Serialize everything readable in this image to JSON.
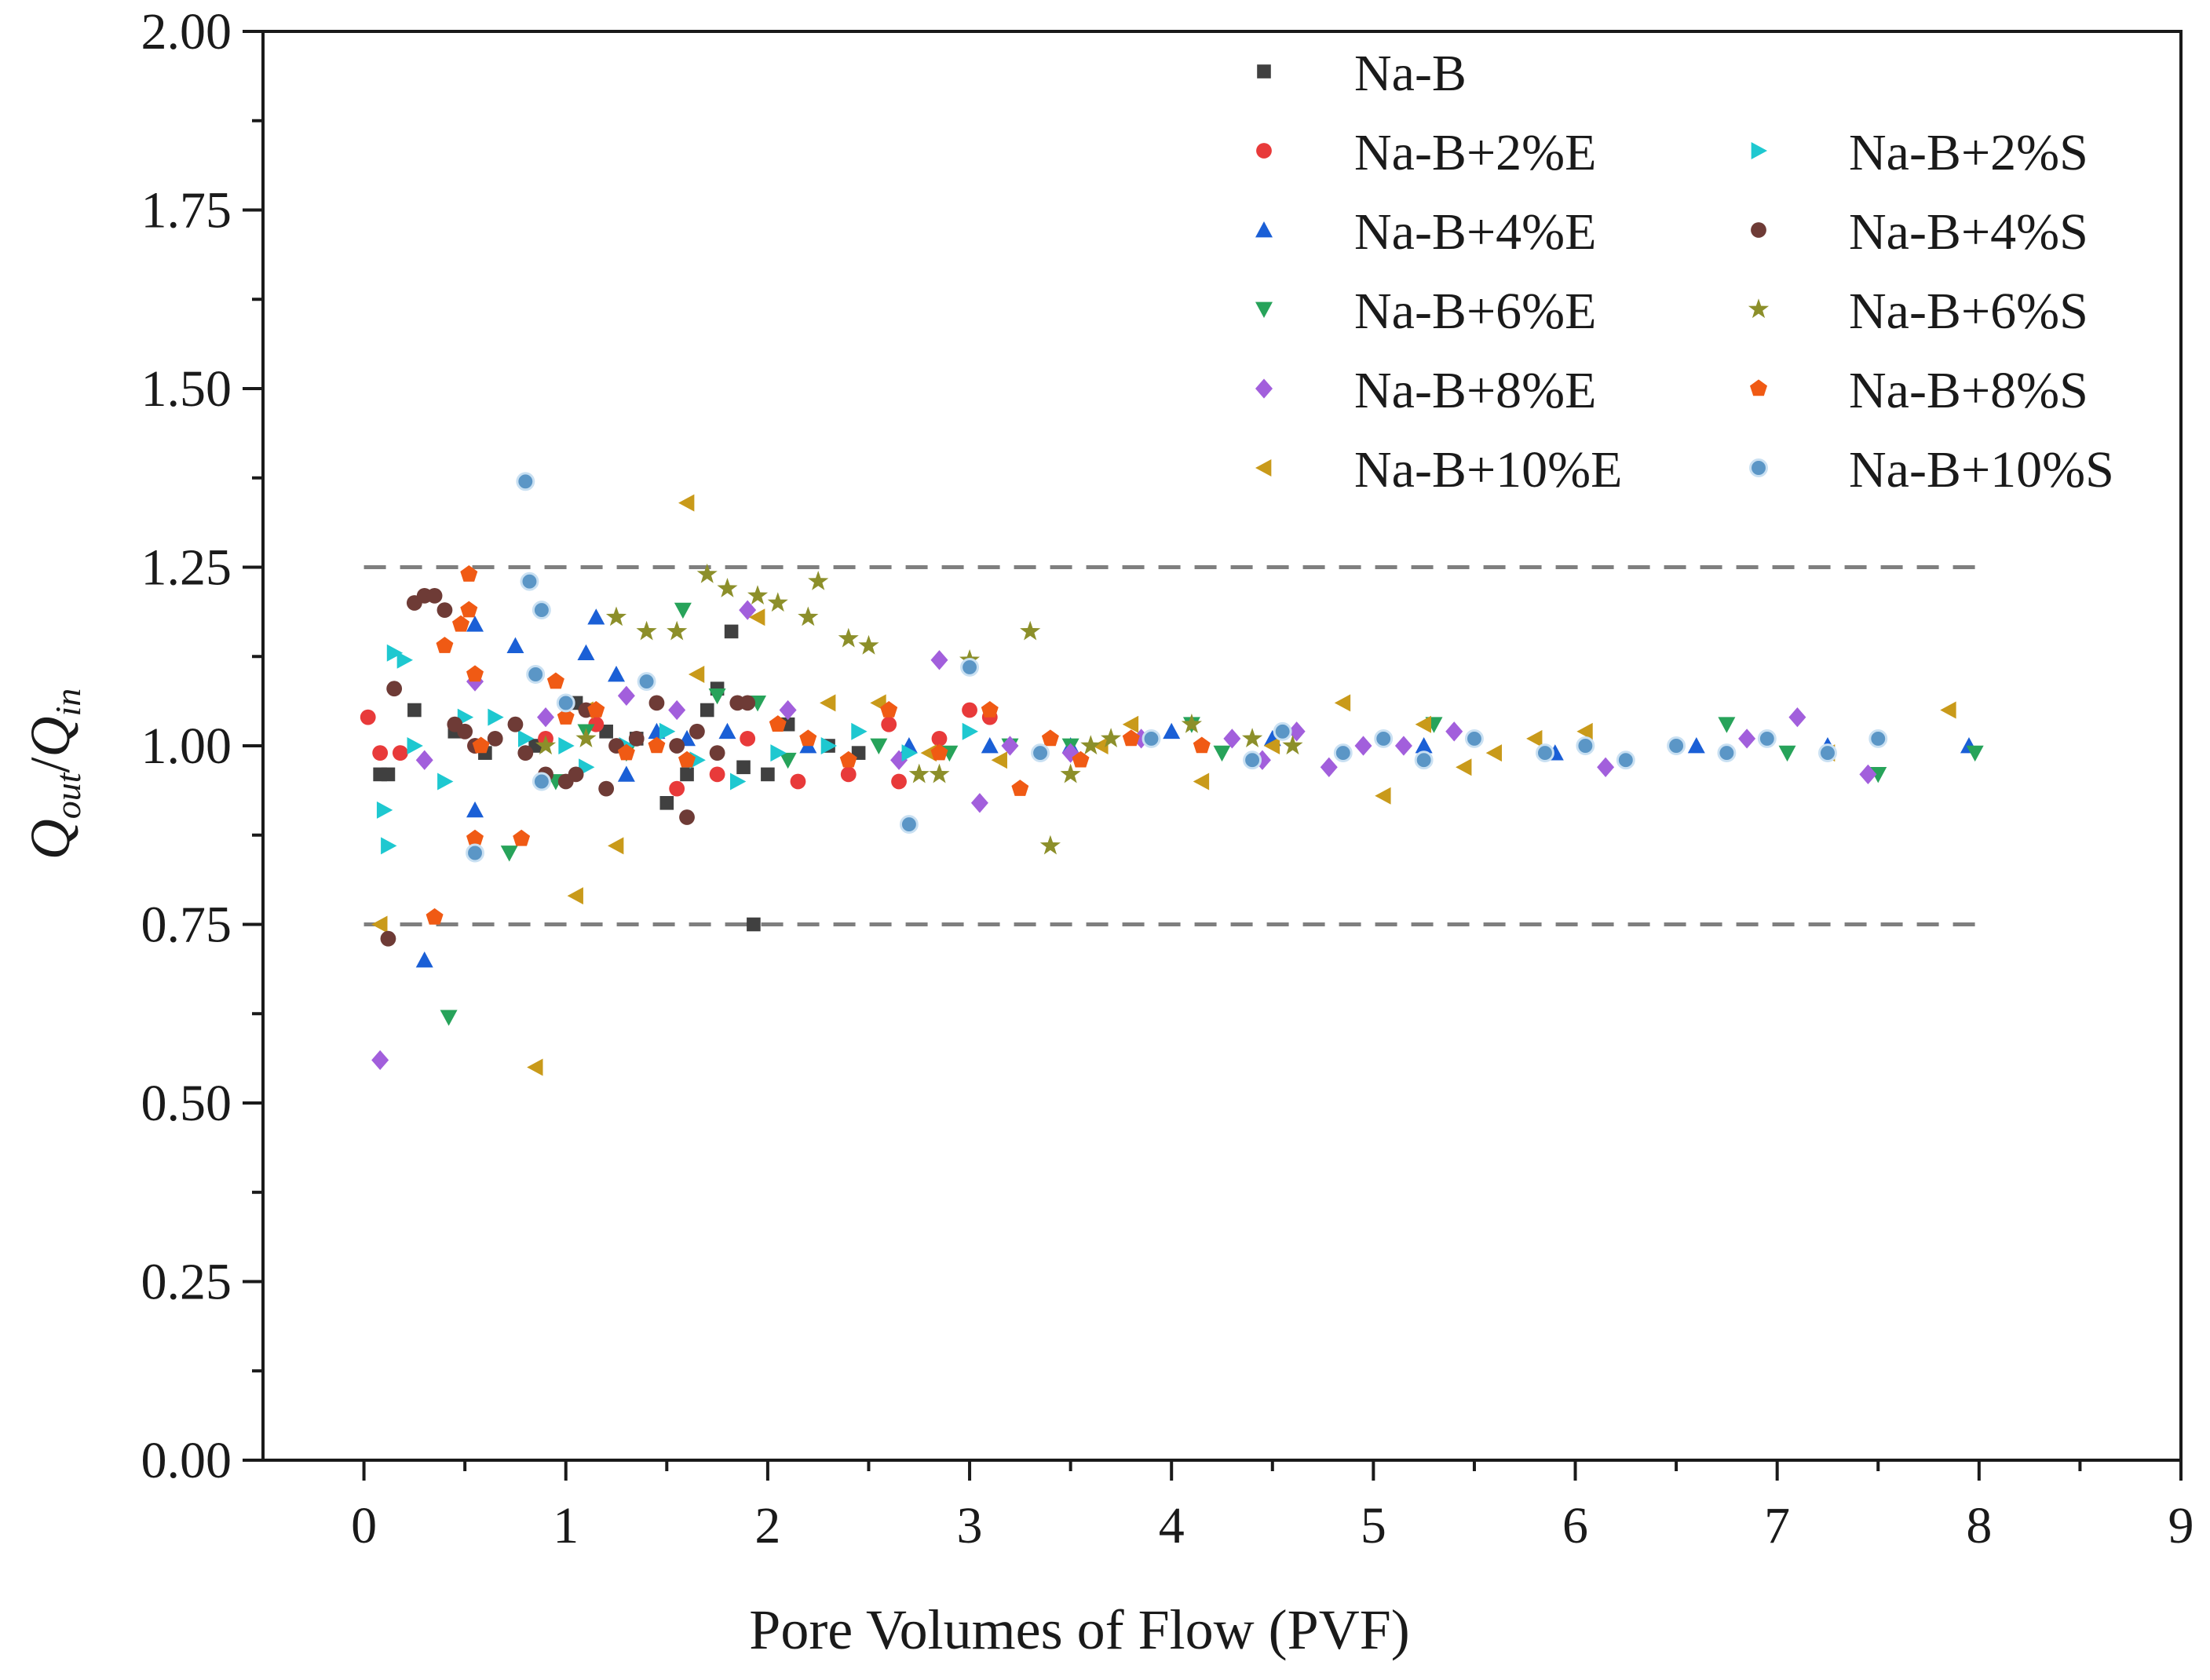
{
  "chart_data": {
    "type": "scatter",
    "title": "",
    "xlabel": "Pore Volumes of Flow (PVF)",
    "ylabel": "Q_out/Q_in",
    "ylabel_parts": {
      "base1": "Q",
      "sub1": "out",
      "slash": "/",
      "base2": "Q",
      "sub2": "in"
    },
    "xlim": [
      -0.5,
      9
    ],
    "ylim": [
      0,
      2
    ],
    "x_ticks": [
      "0",
      "1",
      "2",
      "3",
      "4",
      "5",
      "6",
      "7",
      "8",
      "9"
    ],
    "y_ticks": [
      "0.00",
      "0.25",
      "0.50",
      "0.75",
      "1.00",
      "1.25",
      "1.50",
      "1.75",
      "2.00"
    ],
    "reference_lines": [
      {
        "y": 1.25,
        "x_start": 0,
        "x_end": 8.0,
        "style": "dashed",
        "color": "#7f7f7f"
      },
      {
        "y": 0.75,
        "x_start": 0,
        "x_end": 8.0,
        "style": "dashed",
        "color": "#7f7f7f"
      }
    ],
    "series": [
      {
        "name": "Na-B",
        "marker": "square",
        "color": "#404040",
        "points": [
          [
            0.08,
            0.96
          ],
          [
            0.12,
            0.96
          ],
          [
            0.25,
            1.05
          ],
          [
            0.45,
            1.02
          ],
          [
            0.6,
            0.99
          ],
          [
            0.85,
            1.0
          ],
          [
            1.05,
            1.06
          ],
          [
            1.2,
            1.02
          ],
          [
            1.35,
            1.01
          ],
          [
            1.5,
            0.92
          ],
          [
            1.6,
            0.96
          ],
          [
            1.7,
            1.05
          ],
          [
            1.75,
            1.08
          ],
          [
            1.82,
            1.16
          ],
          [
            1.88,
            0.97
          ],
          [
            1.93,
            0.75
          ],
          [
            2.0,
            0.96
          ],
          [
            2.1,
            1.03
          ],
          [
            2.3,
            1.0
          ],
          [
            2.45,
            0.99
          ]
        ]
      },
      {
        "name": "Na-B+2%E",
        "marker": "circle",
        "color": "#e83a3a",
        "points": [
          [
            0.02,
            1.04
          ],
          [
            0.08,
            0.99
          ],
          [
            0.18,
            0.99
          ],
          [
            0.55,
            1.0
          ],
          [
            0.9,
            1.01
          ],
          [
            1.15,
            1.03
          ],
          [
            1.55,
            0.94
          ],
          [
            1.75,
            0.96
          ],
          [
            1.9,
            1.01
          ],
          [
            2.15,
            0.95
          ],
          [
            2.4,
            0.96
          ],
          [
            2.6,
            1.03
          ],
          [
            2.65,
            0.95
          ],
          [
            2.85,
            1.01
          ],
          [
            3.0,
            1.05
          ],
          [
            3.1,
            1.04
          ]
        ]
      },
      {
        "name": "Na-B+4%E",
        "marker": "triangle-up",
        "color": "#1a5fd6",
        "points": [
          [
            0.3,
            0.7
          ],
          [
            0.55,
            0.91
          ],
          [
            0.55,
            1.17
          ],
          [
            0.75,
            1.14
          ],
          [
            1.1,
            1.13
          ],
          [
            1.15,
            1.18
          ],
          [
            1.25,
            1.1
          ],
          [
            1.3,
            0.96
          ],
          [
            1.45,
            1.02
          ],
          [
            1.6,
            1.01
          ],
          [
            1.8,
            1.02
          ],
          [
            2.2,
            1.0
          ],
          [
            2.7,
            1.0
          ],
          [
            3.1,
            1.0
          ],
          [
            3.5,
            1.0
          ],
          [
            4.0,
            1.02
          ],
          [
            4.5,
            1.01
          ],
          [
            5.25,
            1.0
          ],
          [
            5.9,
            0.99
          ],
          [
            6.6,
            1.0
          ],
          [
            7.25,
            1.0
          ],
          [
            7.95,
            1.0
          ]
        ]
      },
      {
        "name": "Na-B+6%E",
        "marker": "triangle-down",
        "color": "#27a35a",
        "points": [
          [
            0.42,
            0.62
          ],
          [
            0.72,
            0.85
          ],
          [
            0.95,
            0.95
          ],
          [
            1.1,
            1.02
          ],
          [
            1.3,
            0.99
          ],
          [
            1.58,
            1.19
          ],
          [
            1.75,
            1.07
          ],
          [
            1.95,
            1.06
          ],
          [
            2.1,
            0.98
          ],
          [
            2.55,
            1.0
          ],
          [
            2.9,
            0.99
          ],
          [
            3.2,
            1.0
          ],
          [
            3.5,
            1.0
          ],
          [
            4.1,
            1.03
          ],
          [
            4.25,
            0.99
          ],
          [
            5.3,
            1.03
          ],
          [
            6.75,
            1.03
          ],
          [
            7.05,
            0.99
          ],
          [
            7.5,
            0.96
          ],
          [
            7.98,
            0.99
          ]
        ]
      },
      {
        "name": "Na-B+8%E",
        "marker": "diamond",
        "color": "#a25fdc",
        "points": [
          [
            0.08,
            0.56
          ],
          [
            0.3,
            0.98
          ],
          [
            0.55,
            1.09
          ],
          [
            0.9,
            1.04
          ],
          [
            1.3,
            1.07
          ],
          [
            1.55,
            1.05
          ],
          [
            1.9,
            1.19
          ],
          [
            2.1,
            1.05
          ],
          [
            2.65,
            0.98
          ],
          [
            2.85,
            1.12
          ],
          [
            3.05,
            0.92
          ],
          [
            3.2,
            1.0
          ],
          [
            3.5,
            0.99
          ],
          [
            3.85,
            1.01
          ],
          [
            4.3,
            1.01
          ],
          [
            4.45,
            0.98
          ],
          [
            4.62,
            1.02
          ],
          [
            4.78,
            0.97
          ],
          [
            4.95,
            1.0
          ],
          [
            5.15,
            1.0
          ],
          [
            5.4,
            1.02
          ],
          [
            6.15,
            0.97
          ],
          [
            6.85,
            1.01
          ],
          [
            7.1,
            1.04
          ],
          [
            7.45,
            0.96
          ]
        ]
      },
      {
        "name": "Na-B+10%E",
        "marker": "triangle-left",
        "color": "#c99a1a",
        "points": [
          [
            0.08,
            0.75
          ],
          [
            0.85,
            0.55
          ],
          [
            1.05,
            0.79
          ],
          [
            1.1,
            1.05
          ],
          [
            1.25,
            0.86
          ],
          [
            1.6,
            1.34
          ],
          [
            1.65,
            1.1
          ],
          [
            1.95,
            1.18
          ],
          [
            2.3,
            1.06
          ],
          [
            2.55,
            1.06
          ],
          [
            2.8,
            0.99
          ],
          [
            3.15,
            0.98
          ],
          [
            3.65,
            1.0
          ],
          [
            3.8,
            1.03
          ],
          [
            4.15,
            0.95
          ],
          [
            4.5,
            1.0
          ],
          [
            4.85,
            1.06
          ],
          [
            5.05,
            0.93
          ],
          [
            5.25,
            1.03
          ],
          [
            5.45,
            0.97
          ],
          [
            5.6,
            0.99
          ],
          [
            5.8,
            1.01
          ],
          [
            6.05,
            1.02
          ],
          [
            7.25,
            0.99
          ],
          [
            7.85,
            1.05
          ]
        ]
      },
      {
        "name": "Na-B+2%S",
        "marker": "triangle-right",
        "color": "#1ec8d0",
        "points": [
          [
            0.1,
            0.91
          ],
          [
            0.12,
            0.86
          ],
          [
            0.15,
            1.13
          ],
          [
            0.2,
            1.12
          ],
          [
            0.25,
            1.0
          ],
          [
            0.4,
            0.95
          ],
          [
            0.5,
            1.04
          ],
          [
            0.65,
            1.04
          ],
          [
            0.8,
            1.01
          ],
          [
            1.0,
            1.0
          ],
          [
            1.1,
            0.97
          ],
          [
            1.3,
            1.0
          ],
          [
            1.5,
            1.02
          ],
          [
            1.65,
            0.98
          ],
          [
            1.85,
            0.95
          ],
          [
            2.05,
            0.99
          ],
          [
            2.3,
            1.0
          ],
          [
            2.45,
            1.02
          ],
          [
            2.7,
            0.99
          ],
          [
            3.0,
            1.02
          ]
        ]
      },
      {
        "name": "Na-B+4%S",
        "marker": "circle",
        "color": "#6e3b36",
        "points": [
          [
            0.12,
            0.73
          ],
          [
            0.15,
            1.08
          ],
          [
            0.25,
            1.2
          ],
          [
            0.3,
            1.21
          ],
          [
            0.35,
            1.21
          ],
          [
            0.4,
            1.19
          ],
          [
            0.45,
            1.03
          ],
          [
            0.5,
            1.02
          ],
          [
            0.55,
            1.0
          ],
          [
            0.65,
            1.01
          ],
          [
            0.75,
            1.03
          ],
          [
            0.8,
            0.99
          ],
          [
            0.9,
            0.96
          ],
          [
            1.0,
            0.95
          ],
          [
            1.05,
            0.96
          ],
          [
            1.1,
            1.05
          ],
          [
            1.2,
            0.94
          ],
          [
            1.25,
            1.0
          ],
          [
            1.35,
            1.01
          ],
          [
            1.45,
            1.06
          ],
          [
            1.55,
            1.0
          ],
          [
            1.6,
            0.9
          ],
          [
            1.65,
            1.02
          ],
          [
            1.75,
            0.99
          ],
          [
            1.85,
            1.06
          ],
          [
            1.9,
            1.06
          ]
        ]
      },
      {
        "name": "Na-B+6%S",
        "marker": "star",
        "color": "#8c8f2a",
        "points": [
          [
            0.9,
            1.0
          ],
          [
            1.1,
            1.01
          ],
          [
            1.25,
            1.18
          ],
          [
            1.4,
            1.16
          ],
          [
            1.55,
            1.16
          ],
          [
            1.7,
            1.24
          ],
          [
            1.8,
            1.22
          ],
          [
            1.95,
            1.21
          ],
          [
            2.05,
            1.2
          ],
          [
            2.2,
            1.18
          ],
          [
            2.25,
            1.23
          ],
          [
            2.4,
            1.15
          ],
          [
            2.5,
            1.14
          ],
          [
            2.75,
            0.96
          ],
          [
            2.85,
            0.96
          ],
          [
            3.0,
            1.12
          ],
          [
            3.3,
            1.16
          ],
          [
            3.4,
            0.86
          ],
          [
            3.5,
            0.96
          ],
          [
            3.6,
            1.0
          ],
          [
            3.7,
            1.01
          ],
          [
            4.1,
            1.03
          ],
          [
            4.4,
            1.01
          ],
          [
            4.6,
            1.0
          ]
        ]
      },
      {
        "name": "Na-B+8%S",
        "marker": "pentagon",
        "color": "#f05a14",
        "points": [
          [
            0.35,
            0.76
          ],
          [
            0.4,
            1.14
          ],
          [
            0.48,
            1.17
          ],
          [
            0.52,
            1.24
          ],
          [
            0.52,
            1.19
          ],
          [
            0.55,
            1.1
          ],
          [
            0.55,
            0.87
          ],
          [
            0.58,
            1.0
          ],
          [
            0.78,
            0.87
          ],
          [
            0.95,
            1.09
          ],
          [
            1.0,
            1.04
          ],
          [
            1.15,
            1.05
          ],
          [
            1.3,
            0.99
          ],
          [
            1.45,
            1.0
          ],
          [
            1.6,
            0.98
          ],
          [
            2.05,
            1.03
          ],
          [
            2.2,
            1.01
          ],
          [
            2.4,
            0.98
          ],
          [
            2.6,
            1.05
          ],
          [
            2.85,
            0.99
          ],
          [
            3.1,
            1.05
          ],
          [
            3.25,
            0.94
          ],
          [
            3.4,
            1.01
          ],
          [
            3.55,
            0.98
          ],
          [
            3.8,
            1.01
          ],
          [
            4.15,
            1.0
          ]
        ]
      },
      {
        "name": "Na-B+10%S",
        "marker": "circle-shaded",
        "color": "#5b96c6",
        "points": [
          [
            0.55,
            0.85
          ],
          [
            0.8,
            1.37
          ],
          [
            0.82,
            1.23
          ],
          [
            0.85,
            1.1
          ],
          [
            0.88,
            1.19
          ],
          [
            0.88,
            0.95
          ],
          [
            1.0,
            1.06
          ],
          [
            1.4,
            1.09
          ],
          [
            2.7,
            0.89
          ],
          [
            3.0,
            1.11
          ],
          [
            3.35,
            0.99
          ],
          [
            3.9,
            1.01
          ],
          [
            4.4,
            0.98
          ],
          [
            4.55,
            1.02
          ],
          [
            4.85,
            0.99
          ],
          [
            5.05,
            1.01
          ],
          [
            5.25,
            0.98
          ],
          [
            5.5,
            1.01
          ],
          [
            5.85,
            0.99
          ],
          [
            6.05,
            1.0
          ],
          [
            6.25,
            0.98
          ],
          [
            6.5,
            1.0
          ],
          [
            6.75,
            0.99
          ],
          [
            6.95,
            1.01
          ],
          [
            7.25,
            0.99
          ],
          [
            7.5,
            1.01
          ]
        ]
      }
    ],
    "legend": {
      "placement": "top-right",
      "columns": 2
    }
  }
}
